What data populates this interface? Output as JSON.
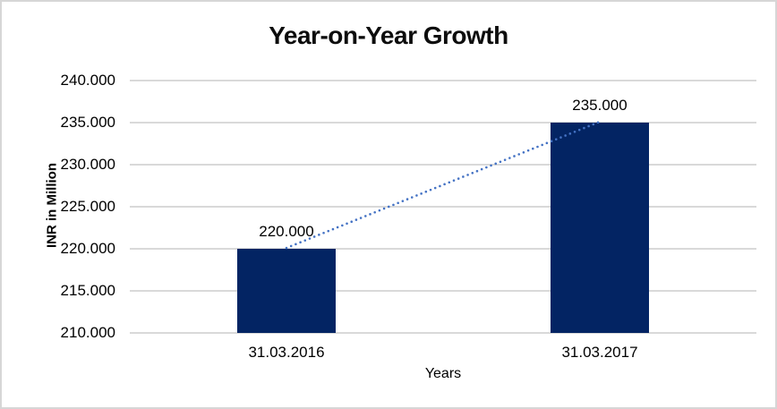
{
  "chart_data": {
    "type": "bar",
    "title": "Year-on-Year Growth",
    "xlabel": "Years",
    "ylabel": "INR in Million",
    "categories": [
      "31.03.2016",
      "31.03.2017"
    ],
    "values": [
      220000,
      235000
    ],
    "data_labels": [
      "220.000",
      "235.000"
    ],
    "y_ticks": [
      {
        "value": 210000,
        "label": "210.000"
      },
      {
        "value": 215000,
        "label": "215.000"
      },
      {
        "value": 220000,
        "label": "220.000"
      },
      {
        "value": 225000,
        "label": "225.000"
      },
      {
        "value": 230000,
        "label": "230.000"
      },
      {
        "value": 235000,
        "label": "235.000"
      },
      {
        "value": 240000,
        "label": "240.000"
      }
    ],
    "ylim": [
      210000,
      240000
    ],
    "grid": true,
    "legend": "none",
    "trendline": {
      "type": "linear",
      "style": "dotted",
      "from_category": 0,
      "to_category": 1
    },
    "colors": {
      "bar": "#032463",
      "trendline": "#4472C4",
      "gridline": "#D9D9D9",
      "text": "#000000",
      "frame_border": "#D6D6D6",
      "background": "#FFFFFF"
    }
  }
}
